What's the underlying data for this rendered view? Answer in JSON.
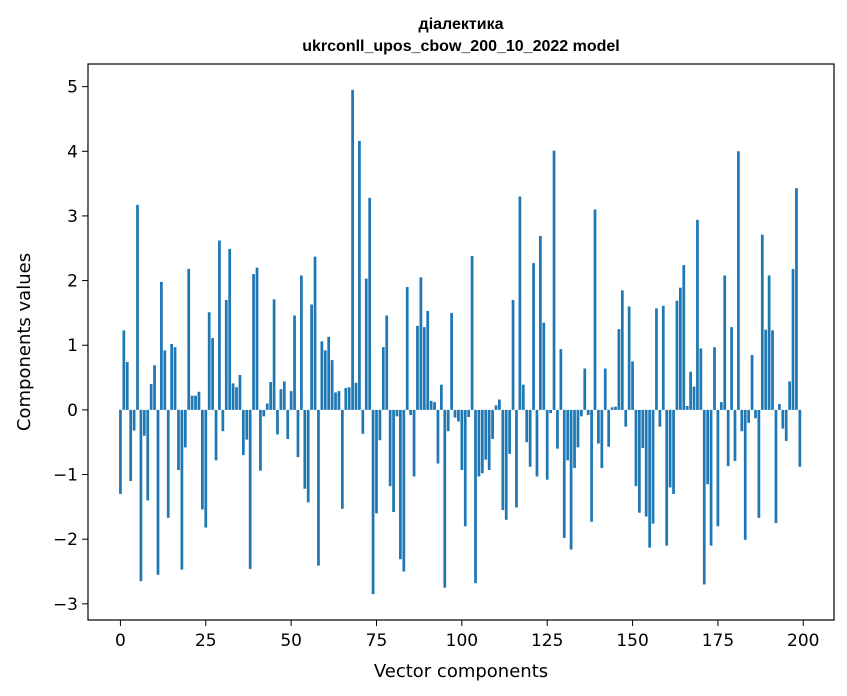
{
  "chart_data": {
    "type": "bar",
    "title": "діалектика",
    "subtitle": "ukrconll_upos_cbow_200_10_2022 model",
    "xlabel": "Vector components",
    "ylabel": "Components values",
    "xlim": [
      -9.5,
      209
    ],
    "ylim": [
      -3.25,
      5.35
    ],
    "xticks": [
      0,
      25,
      50,
      75,
      100,
      125,
      150,
      175,
      200
    ],
    "xtick_labels": [
      "0",
      "25",
      "50",
      "75",
      "100",
      "125",
      "150",
      "175",
      "200"
    ],
    "yticks": [
      -3,
      -2,
      -1,
      0,
      1,
      2,
      3,
      4,
      5
    ],
    "ytick_labels": [
      "−3",
      "−2",
      "−1",
      "0",
      "1",
      "2",
      "3",
      "4",
      "5"
    ],
    "grid": false,
    "bar_color": "#1f77b4",
    "x": [
      0,
      1,
      2,
      3,
      4,
      5,
      6,
      7,
      8,
      9,
      10,
      11,
      12,
      13,
      14,
      15,
      16,
      17,
      18,
      19,
      20,
      21,
      22,
      23,
      24,
      25,
      26,
      27,
      28,
      29,
      30,
      31,
      32,
      33,
      34,
      35,
      36,
      37,
      38,
      39,
      40,
      41,
      42,
      43,
      44,
      45,
      46,
      47,
      48,
      49,
      50,
      51,
      52,
      53,
      54,
      55,
      56,
      57,
      58,
      59,
      60,
      61,
      62,
      63,
      64,
      65,
      66,
      67,
      68,
      69,
      70,
      71,
      72,
      73,
      74,
      75,
      76,
      77,
      78,
      79,
      80,
      81,
      82,
      83,
      84,
      85,
      86,
      87,
      88,
      89,
      90,
      91,
      92,
      93,
      94,
      95,
      96,
      97,
      98,
      99,
      100,
      101,
      102,
      103,
      104,
      105,
      106,
      107,
      108,
      109,
      110,
      111,
      112,
      113,
      114,
      115,
      116,
      117,
      118,
      119,
      120,
      121,
      122,
      123,
      124,
      125,
      126,
      127,
      128,
      129,
      130,
      131,
      132,
      133,
      134,
      135,
      136,
      137,
      138,
      139,
      140,
      141,
      142,
      143,
      144,
      145,
      146,
      147,
      148,
      149,
      150,
      151,
      152,
      153,
      154,
      155,
      156,
      157,
      158,
      159,
      160,
      161,
      162,
      163,
      164,
      165,
      166,
      167,
      168,
      169,
      170,
      171,
      172,
      173,
      174,
      175,
      176,
      177,
      178,
      179,
      180,
      181,
      182,
      183,
      184,
      185,
      186,
      187,
      188,
      189,
      190,
      191,
      192,
      193,
      194,
      195,
      196,
      197,
      198,
      199
    ],
    "values": [
      -1.3,
      1.23,
      0.74,
      -1.1,
      -0.32,
      3.17,
      -2.65,
      -0.4,
      -1.4,
      0.4,
      0.69,
      -2.55,
      1.98,
      0.92,
      -1.67,
      1.02,
      0.97,
      -0.93,
      -2.47,
      -0.58,
      2.18,
      0.22,
      0.22,
      0.28,
      -1.54,
      -1.82,
      1.51,
      1.11,
      -0.78,
      2.62,
      -0.33,
      1.7,
      2.49,
      0.41,
      0.35,
      0.54,
      -0.7,
      -0.46,
      -2.46,
      2.1,
      2.2,
      -0.94,
      -0.1,
      0.1,
      0.43,
      1.71,
      -0.38,
      0.32,
      0.44,
      -0.45,
      0.29,
      1.46,
      -0.73,
      2.08,
      -1.22,
      -1.43,
      1.63,
      2.37,
      -2.41,
      1.06,
      0.92,
      1.13,
      0.77,
      0.27,
      0.29,
      -1.53,
      0.34,
      0.35,
      4.95,
      0.42,
      4.16,
      -0.37,
      2.03,
      3.28,
      -2.85,
      -1.6,
      -0.47,
      0.97,
      1.46,
      -1.18,
      -1.58,
      -0.1,
      -2.31,
      -2.5,
      1.9,
      -0.08,
      -1.03,
      1.3,
      2.05,
      1.28,
      1.53,
      0.14,
      0.12,
      -0.83,
      0.39,
      -2.75,
      -0.33,
      1.5,
      -0.12,
      -0.18,
      -0.93,
      -1.8,
      -0.11,
      2.38,
      -2.68,
      -1.03,
      -0.98,
      -0.77,
      -0.93,
      -0.45,
      0.07,
      0.16,
      -1.55,
      -1.7,
      -0.68,
      1.7,
      -1.51,
      3.3,
      0.39,
      -0.5,
      -0.88,
      2.27,
      -1.03,
      2.69,
      1.35,
      -1.08,
      -0.05,
      4.01,
      -0.6,
      0.94,
      -1.98,
      -0.78,
      -2.16,
      -0.9,
      -0.58,
      -0.1,
      0.64,
      -0.08,
      -1.73,
      3.1,
      -0.52,
      -0.9,
      0.64,
      -0.57,
      0.04,
      0.05,
      1.25,
      1.85,
      -0.26,
      1.6,
      0.75,
      -1.18,
      -1.59,
      -0.59,
      -1.65,
      -2.13,
      -1.76,
      1.57,
      -0.26,
      1.61,
      -2.1,
      -1.2,
      -1.3,
      1.69,
      1.89,
      2.24,
      0.06,
      0.59,
      0.36,
      2.94,
      0.95,
      -2.7,
      -1.15,
      -2.1,
      0.97,
      -1.8,
      0.12,
      2.08,
      -0.87,
      1.28,
      -0.79,
      4.0,
      -0.33,
      -2.01,
      -0.2,
      0.85,
      -0.13,
      -1.67,
      2.71,
      1.24,
      2.08,
      1.23,
      -1.75,
      0.09,
      -0.29,
      -0.48,
      0.44,
      2.18,
      3.43,
      -0.88
    ]
  }
}
